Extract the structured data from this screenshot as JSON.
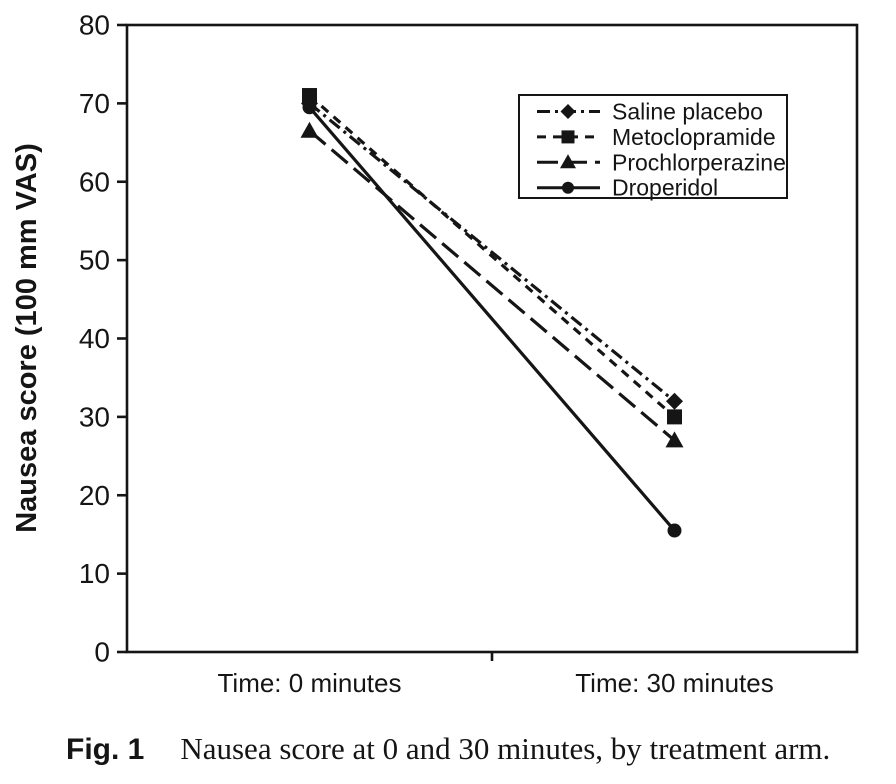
{
  "figure": {
    "caption_label": "Fig. 1",
    "caption_text": "Nausea score at 0 and 30 minutes, by treatment arm."
  },
  "chart_data": {
    "type": "line",
    "title": "",
    "xlabel": "",
    "ylabel": "Nausea score (100 mm VAS)",
    "categories": [
      "Time: 0 minutes",
      "Time: 30 minutes"
    ],
    "ylim": [
      0,
      80
    ],
    "yticks": [
      0,
      10,
      20,
      30,
      40,
      50,
      60,
      70,
      80
    ],
    "grid": false,
    "legend_position": "inside upper right, boxed",
    "ink_color": "#151515",
    "background_color": "#ffffff",
    "series": [
      {
        "name": "Saline placebo",
        "marker": "diamond",
        "line_style": "dash-dot",
        "values": [
          70,
          32
        ]
      },
      {
        "name": "Metoclopramide",
        "marker": "square",
        "line_style": "dashed",
        "values": [
          71,
          30
        ]
      },
      {
        "name": "Prochlorperazine",
        "marker": "triangle",
        "line_style": "long-dash",
        "values": [
          66.5,
          27
        ]
      },
      {
        "name": "Droperidol",
        "marker": "circle",
        "line_style": "solid",
        "values": [
          69.5,
          15.5
        ]
      }
    ]
  }
}
